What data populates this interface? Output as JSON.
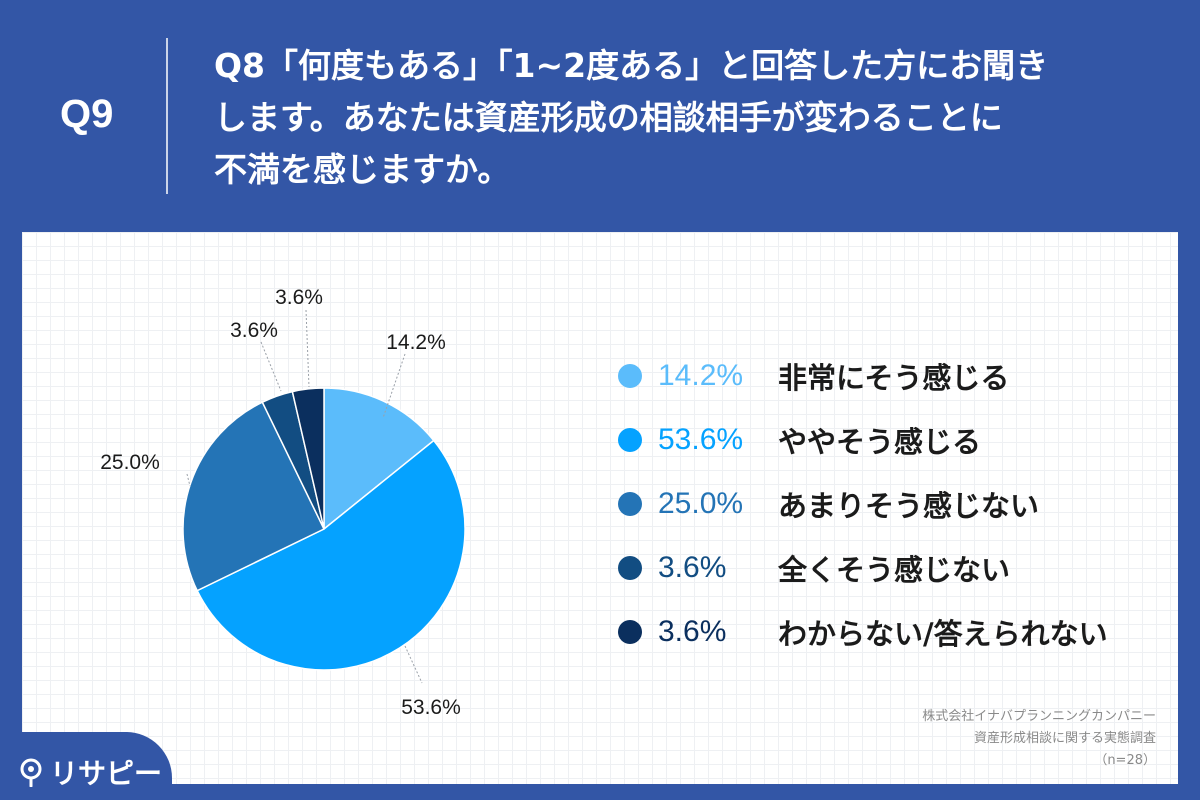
{
  "header": {
    "question_number": "Q9",
    "title_lines": [
      "Q8「何度もある」「1~2度ある」と回答した方にお聞き",
      "します。あなたは資産形成の相談相手が変わることに",
      "不満を感じますか。"
    ]
  },
  "chart_data": {
    "type": "pie",
    "start_angle_deg": 0,
    "direction": "clockwise",
    "slices": [
      {
        "label": "非常にそう感じる",
        "value": 14.2,
        "display": "14.2%",
        "color": "#5bbcfb"
      },
      {
        "label": "ややそう感じる",
        "value": 53.6,
        "display": "53.6%",
        "color": "#05a2ff"
      },
      {
        "label": "あまりそう感じない",
        "value": 25.0,
        "display": "25.0%",
        "color": "#2474b6"
      },
      {
        "label": "全くそう感じない",
        "value": 3.6,
        "display": "3.6%",
        "color": "#124d82"
      },
      {
        "label": "わからない/答えられない",
        "value": 3.6,
        "display": "3.6%",
        "color": "#0b2f5e"
      }
    ],
    "legend_placement": "right"
  },
  "source": {
    "company": "株式会社イナバプランニングカンパニー",
    "survey": "資産形成相談に関する実態調査",
    "sample": "（n=28）"
  },
  "logo": {
    "text": "リサピー"
  }
}
